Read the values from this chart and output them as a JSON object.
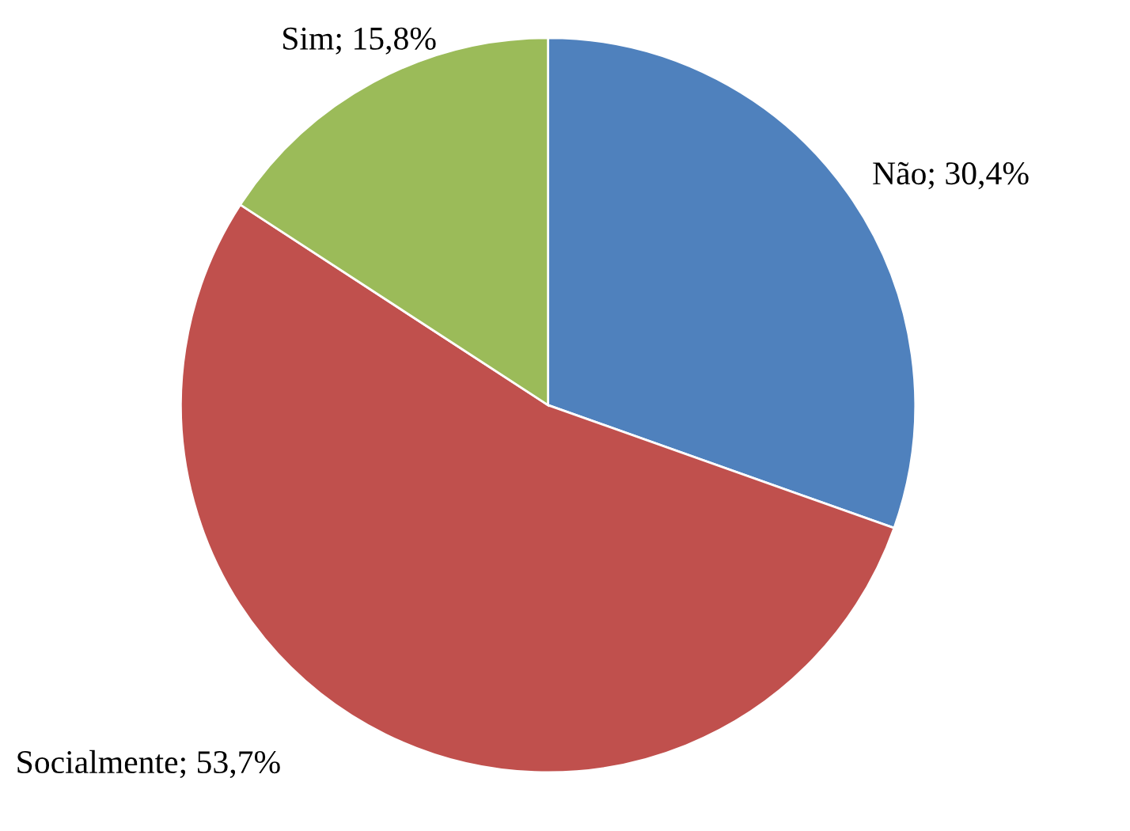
{
  "chart_data": {
    "type": "pie",
    "categories": [
      "Não",
      "Socialmente",
      "Sim"
    ],
    "values": [
      30.4,
      53.7,
      15.8
    ],
    "value_labels": [
      "30,4%",
      "53,7%",
      "15,8%"
    ],
    "colors": [
      "#4f81bd",
      "#c0504d",
      "#9bbb59"
    ],
    "legend": false
  }
}
